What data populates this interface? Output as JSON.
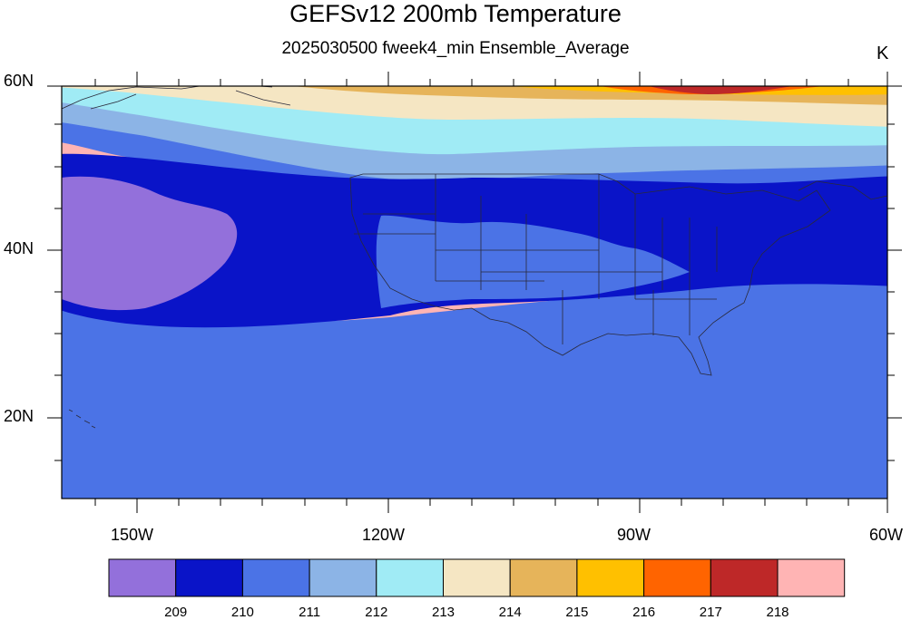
{
  "title": "GEFSv12 200mb Temperature",
  "subtitle": "2025030500 fweek4_min Ensemble_Average",
  "units": "K",
  "lat_labels": [
    "60N",
    "40N",
    "20N"
  ],
  "lon_labels": [
    "150W",
    "120W",
    "90W",
    "60W"
  ],
  "colorbar": {
    "colors": [
      "#9370db",
      "#0a14c8",
      "#4b73e6",
      "#8cb4e6",
      "#a0ebf5",
      "#f5e6c3",
      "#e6b45a",
      "#ffc000",
      "#ff6400",
      "#be2828",
      "#ffb4b4"
    ],
    "tick_labels": [
      "209",
      "210",
      "211",
      "212",
      "213",
      "214",
      "215",
      "216",
      "217",
      "218"
    ]
  }
}
